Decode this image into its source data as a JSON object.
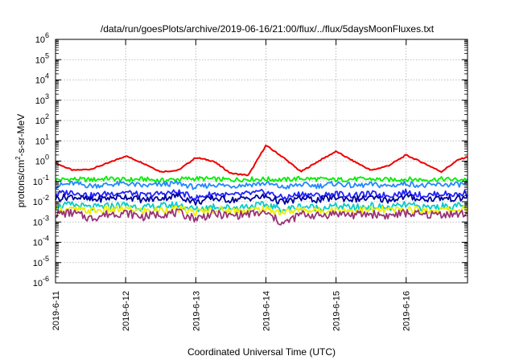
{
  "chart_data": {
    "type": "line",
    "title": "/data/run/goesPlots/archive/2019-06-16/21:00/flux/../flux/5daysMoonFluxes.txt",
    "xlabel": "Coordinated Universal Time (UTC)",
    "ylabel": "protons/cm²-s-sr-MeV",
    "y_scale": "log",
    "ylim": [
      1e-06,
      1000000.0
    ],
    "y_ticks": [
      {
        "exp": "-6",
        "value": 1e-06
      },
      {
        "exp": "-5",
        "value": 1e-05
      },
      {
        "exp": "-4",
        "value": 0.0001
      },
      {
        "exp": "-3",
        "value": 0.001
      },
      {
        "exp": "-2",
        "value": 0.01
      },
      {
        "exp": "-1",
        "value": 0.1
      },
      {
        "exp": "0",
        "value": 1
      },
      {
        "exp": "1",
        "value": 10
      },
      {
        "exp": "2",
        "value": 100
      },
      {
        "exp": "3",
        "value": 1000
      },
      {
        "exp": "4",
        "value": 10000.0
      },
      {
        "exp": "5",
        "value": 100000.0
      },
      {
        "exp": "6",
        "value": 1000000.0
      }
    ],
    "x_unit": "day",
    "xlim": [
      "2019-6-11 00:00",
      "2019-6-16 21:00"
    ],
    "x_ticks": [
      {
        "label": "2019-6-11",
        "day": 0
      },
      {
        "label": "2019-6-12",
        "day": 1
      },
      {
        "label": "2019-6-13",
        "day": 2
      },
      {
        "label": "2019-6-14",
        "day": 3
      },
      {
        "label": "2019-6-15",
        "day": 4
      },
      {
        "label": "2019-6-16",
        "day": 5
      }
    ],
    "grid": true,
    "legend": "none",
    "x": [
      0.0,
      0.25,
      0.5,
      0.75,
      1.0,
      1.25,
      1.5,
      1.75,
      2.0,
      2.25,
      2.5,
      2.75,
      3.0,
      3.25,
      3.5,
      3.75,
      4.0,
      4.25,
      4.5,
      4.75,
      5.0,
      5.25,
      5.5,
      5.75,
      5.875
    ],
    "series": [
      {
        "color": "#ee0000",
        "values": [
          0.8,
          0.35,
          0.4,
          0.8,
          1.8,
          0.8,
          0.3,
          0.35,
          1.5,
          1.0,
          0.25,
          0.2,
          6.0,
          1.5,
          0.3,
          1.0,
          3.0,
          1.0,
          0.35,
          0.6,
          2.0,
          0.8,
          0.3,
          1.2,
          1.6
        ]
      },
      {
        "color": "#00ee00",
        "values": [
          0.12,
          0.13,
          0.12,
          0.14,
          0.12,
          0.13,
          0.11,
          0.13,
          0.14,
          0.13,
          0.12,
          0.13,
          0.13,
          0.12,
          0.14,
          0.13,
          0.12,
          0.13,
          0.13,
          0.12,
          0.13,
          0.12,
          0.13,
          0.12,
          0.13
        ]
      },
      {
        "color": "#2288ff",
        "values": [
          0.06,
          0.08,
          0.06,
          0.07,
          0.08,
          0.06,
          0.07,
          0.08,
          0.05,
          0.07,
          0.06,
          0.07,
          0.08,
          0.05,
          0.07,
          0.06,
          0.08,
          0.06,
          0.07,
          0.06,
          0.08,
          0.06,
          0.07,
          0.07,
          0.08
        ]
      },
      {
        "color": "#2222ff",
        "values": [
          0.025,
          0.03,
          0.02,
          0.025,
          0.03,
          0.02,
          0.025,
          0.03,
          0.015,
          0.025,
          0.02,
          0.025,
          0.03,
          0.015,
          0.025,
          0.02,
          0.025,
          0.02,
          0.025,
          0.02,
          0.03,
          0.02,
          0.025,
          0.022,
          0.03
        ]
      },
      {
        "color": "#000099",
        "values": [
          0.015,
          0.018,
          0.012,
          0.015,
          0.018,
          0.012,
          0.015,
          0.02,
          0.009,
          0.015,
          0.012,
          0.015,
          0.018,
          0.009,
          0.015,
          0.012,
          0.016,
          0.013,
          0.015,
          0.012,
          0.018,
          0.013,
          0.015,
          0.014,
          0.017
        ]
      },
      {
        "color": "#00cccc",
        "values": [
          0.006,
          0.007,
          0.005,
          0.006,
          0.007,
          0.005,
          0.006,
          0.007,
          0.004,
          0.006,
          0.005,
          0.006,
          0.007,
          0.004,
          0.006,
          0.005,
          0.006,
          0.005,
          0.006,
          0.005,
          0.007,
          0.005,
          0.006,
          0.006,
          0.006
        ]
      },
      {
        "color": "#eeee00",
        "values": [
          0.004,
          0.004,
          0.0035,
          0.004,
          0.0042,
          0.0035,
          0.004,
          0.0042,
          0.003,
          0.004,
          0.0035,
          0.004,
          0.0042,
          0.003,
          0.004,
          0.0035,
          0.004,
          0.0037,
          0.004,
          0.0037,
          0.0042,
          0.0037,
          0.004,
          0.004,
          0.0041
        ]
      },
      {
        "color": "#993377",
        "values": [
          0.0025,
          0.0028,
          0.0015,
          0.0025,
          0.0028,
          0.0018,
          0.0025,
          0.0028,
          0.0015,
          0.0025,
          0.002,
          0.0025,
          0.0027,
          0.0008,
          0.0025,
          0.002,
          0.0027,
          0.0022,
          0.0025,
          0.002,
          0.0028,
          0.0022,
          0.0025,
          0.0024,
          0.0026
        ]
      }
    ]
  }
}
